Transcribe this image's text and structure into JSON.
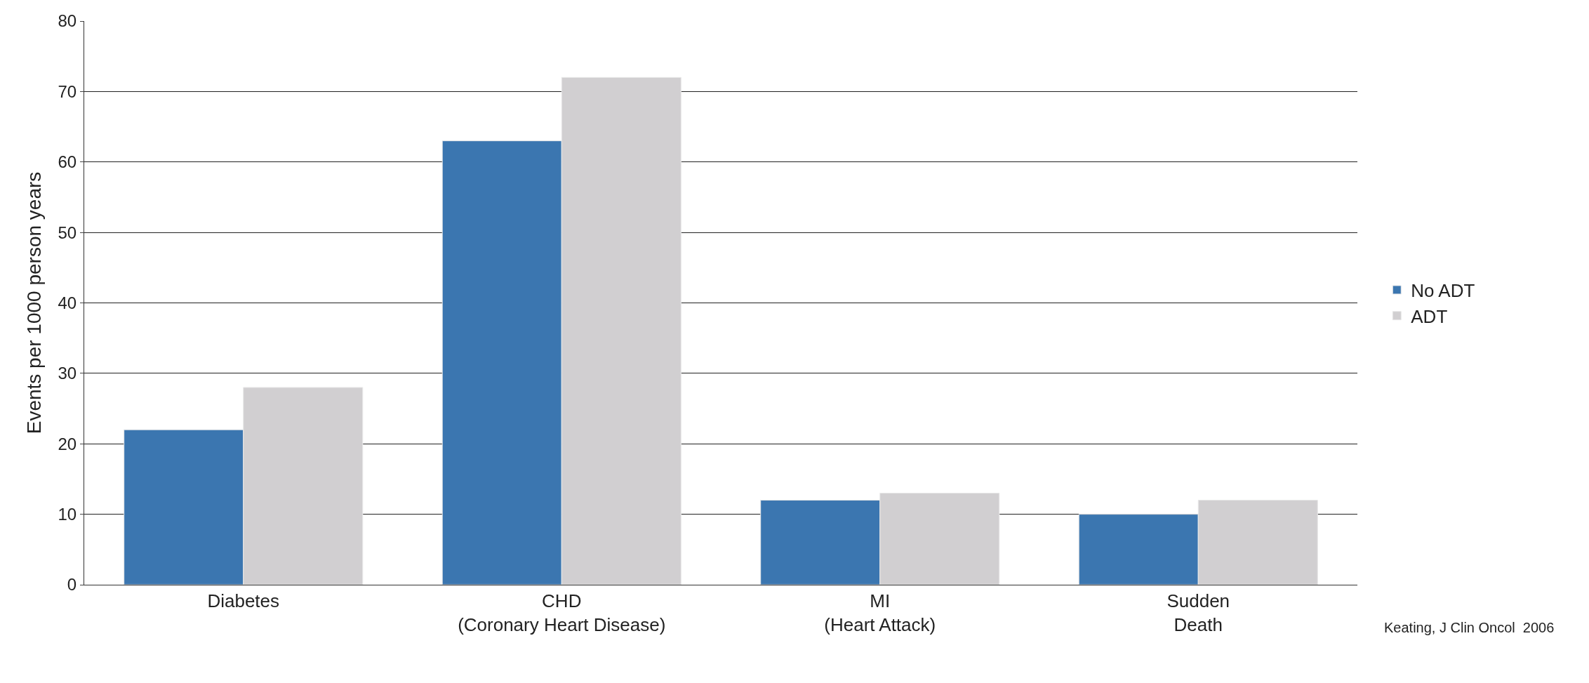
{
  "chart_data": {
    "type": "bar",
    "ylabel": "Events per 1000 person years",
    "categories": [
      "Diabetes",
      "CHD\n(Coronary Heart Disease)",
      "MI\n(Heart Attack)",
      "Sudden\nDeath"
    ],
    "series": [
      {
        "name": "No ADT",
        "color": "#3b76b0",
        "values": [
          22,
          63,
          12,
          10
        ]
      },
      {
        "name": "ADT",
        "color": "#d1cfd1",
        "values": [
          28,
          72,
          13,
          12
        ]
      }
    ],
    "ylim": [
      0,
      80
    ],
    "yticks": [
      0,
      10,
      20,
      30,
      40,
      50,
      60,
      70,
      80
    ],
    "grid": "y",
    "legend": "right",
    "annotations": [
      "Keating, J Clin Oncol  2006"
    ]
  }
}
